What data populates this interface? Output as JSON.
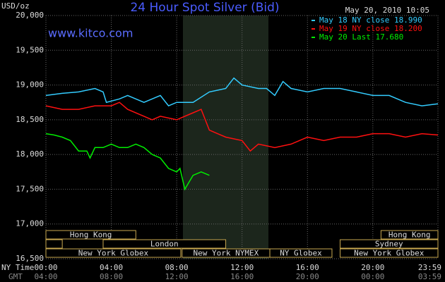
{
  "chart_data": {
    "type": "line",
    "title": "24 Hour Spot Silver (Bid)",
    "source": "www.kitco.com",
    "timestamp": "May 20, 2010 10:05",
    "y_label": "USD/oz",
    "x_label": "NY Time",
    "x2_label": "GMT",
    "ylim": [
      16500,
      20000
    ],
    "yticks": [
      {
        "value": 16500,
        "label": "16,500"
      },
      {
        "value": 17000,
        "label": "17,000"
      },
      {
        "value": 17500,
        "label": "17,500"
      },
      {
        "value": 18000,
        "label": "18,000"
      },
      {
        "value": 18500,
        "label": "18,500"
      },
      {
        "value": 19000,
        "label": "19,000"
      },
      {
        "value": 19500,
        "label": "19,500"
      },
      {
        "value": 20000,
        "label": "20,000"
      }
    ],
    "xlim": [
      0,
      23.983
    ],
    "xticks": [
      {
        "value": 0,
        "label": "00:00"
      },
      {
        "value": 4,
        "label": "04:00"
      },
      {
        "value": 8,
        "label": "08:00"
      },
      {
        "value": 12,
        "label": "12:00"
      },
      {
        "value": 16,
        "label": "16:00"
      },
      {
        "value": 20,
        "label": "20:00"
      },
      {
        "value": 23.983,
        "label": "23:59"
      }
    ],
    "x2_ticklabels": [
      "04:00",
      "08:00",
      "12:00",
      "16:00",
      "20:00",
      "00:00",
      "03:59"
    ],
    "grid": true,
    "session_rows": [
      [
        {
          "name": "Hong Kong",
          "start": 0,
          "end": 5.5
        },
        {
          "name": "Hong Kong",
          "start": 20.5,
          "end": 23.983
        }
      ],
      [
        {
          "start": 0,
          "end": 1
        },
        {
          "name": "London",
          "start": 3.5,
          "end": 11
        },
        {
          "name": "Sydney",
          "start": 18,
          "end": 23.983
        }
      ],
      [
        {
          "name": "New York Globex",
          "start": 0,
          "end": 8.25
        },
        {
          "name": "New York NYMEX",
          "start": 8.33,
          "end": 13.7
        },
        {
          "name": "NY Globex",
          "start": 13.7,
          "end": 17.5
        },
        {
          "name": "New York Globex",
          "start": 18,
          "end": 23.983
        }
      ]
    ],
    "series": [
      {
        "name": "May 18 NY close 18.990",
        "color": "#33ccff",
        "x": [
          0,
          1,
          2,
          3,
          3.5,
          3.7,
          4.5,
          5,
          6,
          6.5,
          7,
          7.5,
          8,
          9,
          10,
          11,
          11.5,
          12,
          13,
          13.5,
          14,
          14.5,
          15,
          16,
          17,
          18,
          19,
          20,
          21,
          22,
          23,
          23.983
        ],
        "values": [
          18850,
          18880,
          18900,
          18950,
          18900,
          18750,
          18800,
          18850,
          18750,
          18800,
          18850,
          18700,
          18750,
          18750,
          18900,
          18950,
          19100,
          19000,
          18950,
          18950,
          18850,
          19050,
          18950,
          18900,
          18950,
          18950,
          18900,
          18850,
          18850,
          18750,
          18700,
          18730
        ]
      },
      {
        "name": "May 19 NY close 18.200",
        "color": "#ff1010",
        "x": [
          0,
          1,
          2,
          3,
          4,
          4.5,
          5,
          6,
          6.5,
          7,
          8,
          9,
          9.5,
          10,
          10.5,
          11,
          12,
          12.5,
          13,
          14,
          15,
          16,
          17,
          18,
          19,
          20,
          21,
          22,
          23,
          23.983
        ],
        "values": [
          18700,
          18650,
          18650,
          18700,
          18700,
          18750,
          18650,
          18550,
          18500,
          18550,
          18500,
          18600,
          18650,
          18350,
          18300,
          18250,
          18200,
          18050,
          18150,
          18100,
          18150,
          18250,
          18200,
          18250,
          18250,
          18300,
          18300,
          18250,
          18300,
          18280
        ]
      },
      {
        "name": "May 20 Last 17.680",
        "color": "#00ee00",
        "x": [
          0,
          0.5,
          1,
          1.5,
          2,
          2.5,
          2.7,
          3,
          3.5,
          4,
          4.5,
          5,
          5.5,
          6,
          6.5,
          7,
          7.5,
          8,
          8.2,
          8.5,
          9,
          9.5,
          10
        ],
        "values": [
          18300,
          18280,
          18250,
          18200,
          18050,
          18050,
          17950,
          18100,
          18100,
          18150,
          18100,
          18100,
          18150,
          18100,
          18000,
          17950,
          17800,
          17750,
          17800,
          17500,
          17700,
          17750,
          17700
        ]
      }
    ]
  }
}
